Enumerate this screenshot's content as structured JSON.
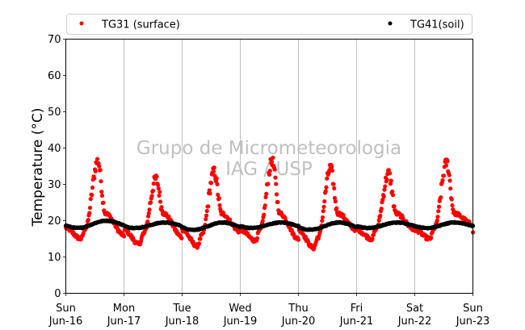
{
  "chart_data": {
    "type": "scatter",
    "title": "",
    "xlabel": "",
    "ylabel": "Temperature (°C)",
    "ylim": [
      0,
      70
    ],
    "yticks": [
      0,
      10,
      20,
      30,
      40,
      50,
      60,
      70
    ],
    "xlim_days": [
      0,
      7
    ],
    "xticks": [
      {
        "day": "Sun",
        "date": "Jun-16"
      },
      {
        "day": "Mon",
        "date": "Jun-17"
      },
      {
        "day": "Tue",
        "date": "Jun-18"
      },
      {
        "day": "Wed",
        "date": "Jun-19"
      },
      {
        "day": "Thu",
        "date": "Jun-20"
      },
      {
        "day": "Fri",
        "date": "Jun-21"
      },
      {
        "day": "Sat",
        "date": "Jun-22"
      },
      {
        "day": "Sun",
        "date": "Jun-23"
      }
    ],
    "grid": "vertical",
    "legend_position": "top",
    "watermark": [
      "Grupo de Micrometeorologia",
      "IAG / USP"
    ],
    "series": [
      {
        "name": "TG31 (surface)",
        "color": "#ff0000",
        "daily": [
          {
            "min": 15,
            "max": 36.5
          },
          {
            "min": 13.5,
            "max": 31.5
          },
          {
            "min": 13,
            "max": 33.5
          },
          {
            "min": 14.5,
            "max": 36.5
          },
          {
            "min": 12.5,
            "max": 34.5
          },
          {
            "min": 15,
            "max": 33
          },
          {
            "min": 15,
            "max": 36
          }
        ],
        "end_value": 16.5
      },
      {
        "name": "TG41(soil)",
        "color": "#000000",
        "daily": [
          {
            "min": 18,
            "max": 20
          },
          {
            "min": 18,
            "max": 19.5
          },
          {
            "min": 17.5,
            "max": 19.5
          },
          {
            "min": 18,
            "max": 19.5
          },
          {
            "min": 17.5,
            "max": 19.5
          },
          {
            "min": 18,
            "max": 19.5
          },
          {
            "min": 18,
            "max": 19.5
          }
        ],
        "end_value": 18.5
      }
    ]
  }
}
